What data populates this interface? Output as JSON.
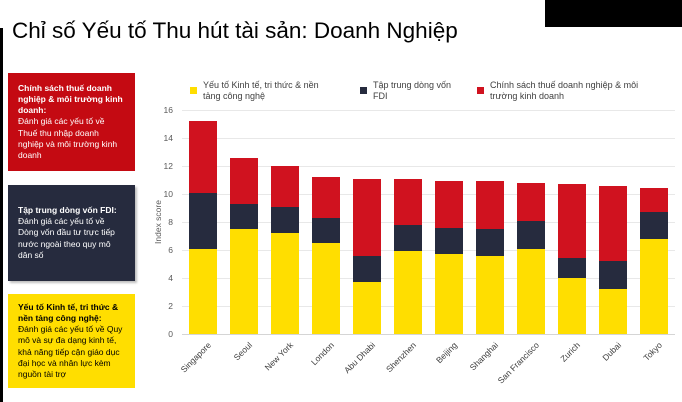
{
  "title": "Chỉ số Yếu tố Thu hút tài sản: Doanh Nghiệp",
  "info_boxes": [
    {
      "title": "Chính sách thuế doanh nghiệp & môi trường kinh doanh:",
      "body": "Đánh giá các yếu tố về Thuế thu nhập doanh nghiệp và môi trường kinh doanh",
      "bg": "#c40a12",
      "fg": "#ffffff"
    },
    {
      "title": "Tập trung dòng vốn FDI:",
      "body": "Đánh giá các yếu tố về Dòng vốn đầu tư trực tiếp nước ngoài theo quy mô dân số",
      "bg": "#262b3e",
      "fg": "#ffffff"
    },
    {
      "title": "Yếu tố Kinh tế, tri thức & nền tảng công nghệ:",
      "body": "Đánh giá các yếu tố về Quy mô và sự đa dạng kinh tế, khả năng tiếp cận giáo dục đại học và nhân lực kèm nguồn tài trợ",
      "bg": "#ffde00",
      "fg": "#000000"
    }
  ],
  "chart_data": {
    "type": "bar",
    "stacked": true,
    "title": "",
    "xlabel": "",
    "ylabel": "Index score",
    "ylim": [
      0,
      16
    ],
    "ytick_step": 2,
    "grid": true,
    "legend_position": "top",
    "categories": [
      "Singapore",
      "Seoul",
      "New York",
      "London",
      "Abu Dhabi",
      "Shenzhen",
      "Beijing",
      "Shanghai",
      "San Francisco",
      "Zurich",
      "Dubai",
      "Tokyo"
    ],
    "series": [
      {
        "name": "Yếu tố Kinh tế, tri thức & nền tảng công nghệ",
        "color": "#ffde00",
        "values": [
          6.1,
          7.5,
          7.2,
          6.5,
          3.7,
          5.9,
          5.7,
          5.6,
          6.1,
          4.0,
          3.2,
          6.8
        ]
      },
      {
        "name": "Tập trung dòng vốn FDI",
        "color": "#262b3e",
        "values": [
          4.0,
          1.8,
          1.9,
          1.8,
          1.9,
          1.9,
          1.9,
          1.9,
          2.0,
          1.4,
          2.0,
          1.9
        ]
      },
      {
        "name": "Chính sách thuế doanh nghiệp & môi trường kinh doanh",
        "color": "#d0121f",
        "values": [
          5.1,
          3.3,
          2.9,
          2.9,
          5.5,
          3.3,
          3.3,
          3.4,
          2.7,
          5.3,
          5.4,
          1.7
        ]
      }
    ],
    "totals": [
      15.2,
      12.6,
      12.0,
      11.2,
      11.1,
      11.1,
      10.9,
      10.9,
      10.8,
      10.7,
      10.6,
      10.4
    ]
  }
}
